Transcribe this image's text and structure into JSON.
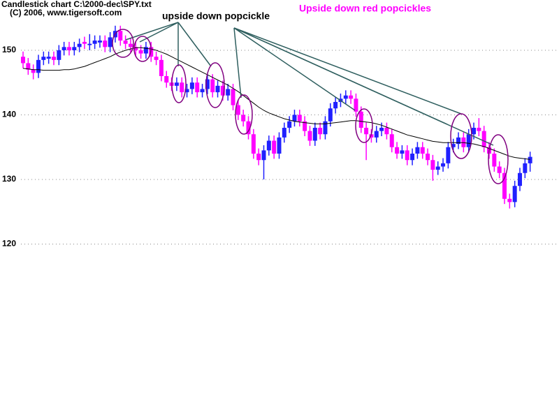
{
  "chart_data": {
    "type": "candlestick",
    "title": "Candlestick chart C:\\2000-dec\\SPY.txt",
    "subtitle": "(C) 2006, www.tigersoft.com",
    "annotations": [
      "upside down popcickle",
      "Upside down red popcickles"
    ],
    "up_color": "#2020ff",
    "down_color": "#ff00ff",
    "ma_color": "#000000",
    "ylim": [
      92.92,
      157.78
    ],
    "yticks": [
      120,
      130,
      140,
      150
    ],
    "grid": true,
    "open": [
      149,
      148,
      147,
      146.5,
      148.5,
      148.7,
      149,
      148.5,
      150,
      150.5,
      150,
      150.5,
      151.3,
      150.8,
      151,
      151.2,
      151.5,
      150.5,
      152,
      153,
      151.5,
      151,
      150.5,
      150,
      149.5,
      150.5,
      149,
      148.5,
      146,
      145,
      144.5,
      145,
      143.5,
      144,
      145,
      143.5,
      144,
      145.5,
      143.5,
      144.5,
      143,
      144,
      141.5,
      140,
      139,
      137,
      134,
      133,
      134.5,
      136,
      134,
      136.5,
      138,
      139,
      140,
      139,
      137.5,
      136,
      138,
      137,
      139,
      141,
      142,
      142.5,
      143,
      142.5,
      140.5,
      138,
      137,
      136.5,
      137.5,
      138,
      137,
      135,
      134,
      134.5,
      133,
      134,
      135,
      134,
      133,
      131.5,
      132,
      132.5,
      135,
      135.5,
      136.5,
      135,
      137,
      138,
      137.5,
      135,
      134,
      132,
      131,
      127,
      126.5,
      129,
      131,
      132.5
    ],
    "high": [
      149.8,
      148.8,
      147.8,
      149.3,
      149.8,
      149.8,
      149.8,
      150.8,
      151.3,
      151.3,
      151.3,
      151.8,
      152.1,
      152.5,
      152.3,
      152.3,
      152.3,
      152.8,
      153.8,
      153.8,
      152.3,
      151.8,
      151.3,
      150.8,
      151.3,
      151.3,
      149.8,
      149.3,
      146.8,
      145.8,
      145.8,
      145.8,
      144.8,
      145.8,
      145.8,
      144.8,
      146.3,
      146.3,
      145.3,
      145.3,
      144.8,
      144.8,
      142.3,
      140.8,
      139.8,
      137.8,
      134.8,
      135.3,
      136.8,
      136.8,
      137.3,
      138.8,
      139.8,
      140.8,
      140.8,
      139.8,
      138.3,
      138.8,
      138.8,
      139.8,
      141.8,
      142.8,
      143.3,
      143.8,
      143.8,
      143.3,
      141.3,
      138.8,
      137.8,
      138.3,
      138.8,
      138.8,
      137.8,
      135.8,
      135.3,
      135.3,
      134.8,
      135.8,
      135.8,
      134.8,
      133.8,
      132.8,
      133.3,
      135.8,
      136.3,
      137.3,
      137.3,
      137.8,
      138.8,
      139.5,
      138.3,
      135.8,
      134.8,
      132.8,
      131.8,
      127.8,
      129.8,
      131.8,
      133.3,
      134.3
    ],
    "low": [
      147.2,
      146.2,
      145.5,
      145.7,
      147.7,
      147.9,
      147.7,
      147.7,
      149.2,
      149.2,
      149.2,
      149.7,
      150.2,
      150,
      150.2,
      150.4,
      149.7,
      149.7,
      151.2,
      150.7,
      150.2,
      149.7,
      149.2,
      148.7,
      148.7,
      148.2,
      147.7,
      145.2,
      144.2,
      143.7,
      143.7,
      142.7,
      142.7,
      143.2,
      142.7,
      142.7,
      143.2,
      142.7,
      142.7,
      142.2,
      142.2,
      140.7,
      139.2,
      138.2,
      136.2,
      133.2,
      132.2,
      130,
      133.7,
      133.2,
      133.2,
      135.7,
      137.2,
      138.2,
      138.2,
      136.7,
      135.2,
      135.2,
      136.2,
      136.2,
      138.2,
      140.2,
      141.2,
      141.7,
      141.7,
      139.7,
      137.2,
      133,
      135.7,
      135.7,
      136.7,
      136.2,
      134.2,
      133.2,
      133.2,
      132.2,
      132.2,
      133.2,
      133.2,
      132.2,
      129.8,
      130.7,
      131.2,
      131.7,
      134.2,
      134.7,
      134.2,
      134.2,
      136.2,
      136.7,
      134.2,
      133.2,
      131.2,
      130.2,
      126.2,
      125.5,
      125.7,
      128.2,
      130.2,
      131.2
    ],
    "close": [
      148,
      147,
      146.5,
      148.5,
      149,
      149,
      148.5,
      150,
      150.5,
      150,
      150.5,
      151,
      151,
      151,
      151.5,
      151.5,
      150.5,
      152,
      153,
      151.5,
      151,
      150.5,
      150,
      149.5,
      150.5,
      149,
      148.5,
      146,
      145,
      144.5,
      145,
      143.5,
      144,
      145,
      143.5,
      144,
      145.5,
      143.5,
      144.5,
      143,
      144,
      141.5,
      140,
      139,
      137,
      134,
      133,
      134.5,
      136,
      134,
      136.5,
      138,
      139,
      140,
      139,
      137.5,
      136,
      138,
      137,
      139,
      141,
      142,
      142.5,
      143,
      142.5,
      140.5,
      138,
      137,
      136.5,
      137.5,
      138,
      137,
      135,
      134,
      134.5,
      133,
      134,
      135,
      134,
      133,
      131.5,
      132,
      132.5,
      135,
      135.5,
      136.5,
      135,
      137,
      138,
      137.5,
      135,
      134,
      132,
      131,
      127,
      126.5,
      129,
      131,
      132.5,
      133.5
    ],
    "ma": [
      147.2,
      147.1,
      147,
      147,
      146.9,
      146.9,
      146.9,
      146.9,
      147,
      147,
      147.1,
      147.3,
      147.5,
      147.8,
      148.1,
      148.4,
      148.7,
      149,
      149.4,
      149.7,
      150,
      150.2,
      150.4,
      150.4,
      150.3,
      150.2,
      150,
      149.7,
      149.4,
      149,
      148.6,
      148.2,
      147.8,
      147.4,
      147,
      146.6,
      146.2,
      145.8,
      145.4,
      145,
      144.6,
      144.1,
      143.6,
      143,
      142.4,
      141.8,
      141.2,
      140.7,
      140.3,
      140,
      139.7,
      139.4,
      139.2,
      139,
      138.9,
      138.8,
      138.7,
      138.6,
      138.6,
      138.6,
      138.7,
      138.8,
      138.9,
      139,
      139.1,
      139.1,
      139,
      138.9,
      138.8,
      138.6,
      138.4,
      138.1,
      137.8,
      137.5,
      137.2,
      136.9,
      136.7,
      136.5,
      136.3,
      136.1,
      135.9,
      135.8,
      135.7,
      135.7,
      135.7,
      135.7,
      135.7,
      135.6,
      135.5,
      135.3,
      135.1,
      134.8,
      134.5,
      134.2,
      133.9,
      133.6,
      133.4,
      133.3,
      133.2,
      133.1
    ]
  }
}
